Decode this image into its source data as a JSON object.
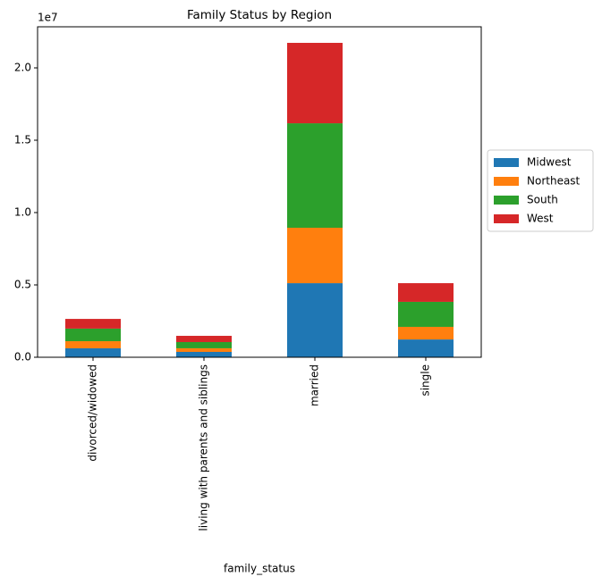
{
  "chart_data": {
    "type": "bar",
    "stacked": true,
    "title": "Family Status by Region",
    "x_label": "family_status",
    "y_offset_label": "1e7",
    "categories": [
      "divorced/widowed",
      "living with parents and siblings",
      "married",
      "single"
    ],
    "series": [
      {
        "name": "Midwest",
        "color": "#1f77b4",
        "values": [
          620000,
          370000,
          5120000,
          1230000
        ]
      },
      {
        "name": "Northeast",
        "color": "#ff7f0e",
        "values": [
          490000,
          250000,
          3830000,
          870000
        ]
      },
      {
        "name": "South",
        "color": "#2ca02c",
        "values": [
          870000,
          430000,
          7220000,
          1730000
        ]
      },
      {
        "name": "West",
        "color": "#d62728",
        "values": [
          670000,
          430000,
          5560000,
          1290000
        ]
      }
    ],
    "ylim": [
      0,
      22840000
    ],
    "yticks": [
      {
        "value": 0,
        "label": "0.0"
      },
      {
        "value": 5000000,
        "label": "0.5"
      },
      {
        "value": 10000000,
        "label": "1.0"
      },
      {
        "value": 15000000,
        "label": "1.5"
      },
      {
        "value": 20000000,
        "label": "2.0"
      }
    ],
    "legend": "right",
    "grid": false
  }
}
